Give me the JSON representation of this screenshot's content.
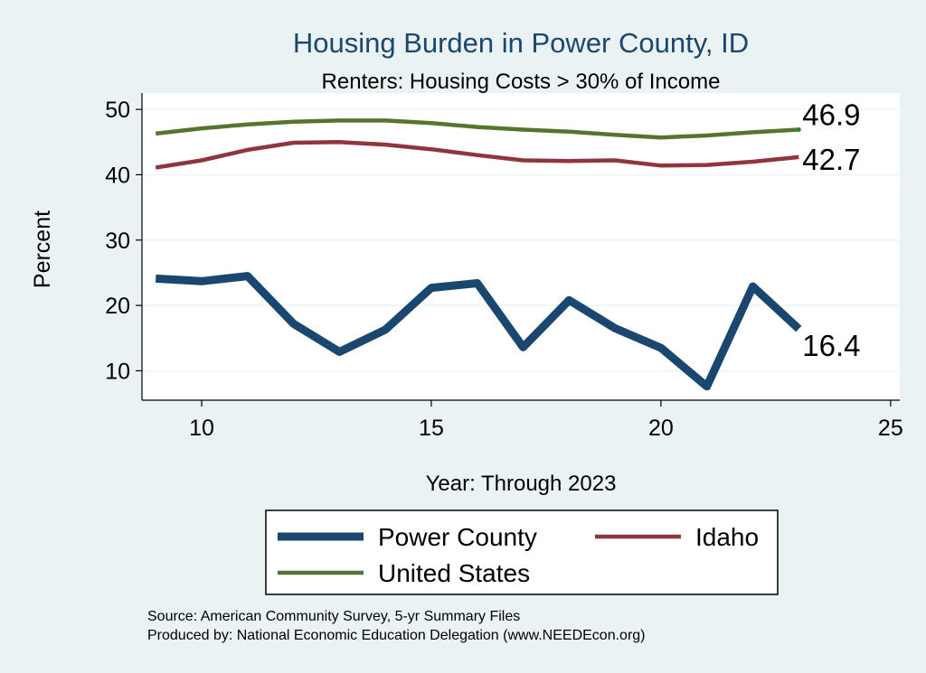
{
  "chart_data": {
    "type": "line",
    "title": "Housing Burden in Power County, ID",
    "subtitle": "Renters: Housing Costs > 30% of Income",
    "xlabel": "Year: Through 2023",
    "ylabel": "Percent",
    "xlim": [
      8.7,
      25.2
    ],
    "ylim": [
      5.5,
      52.5
    ],
    "xticks": [
      10,
      15,
      20,
      25
    ],
    "yticks": [
      10,
      20,
      30,
      40,
      50
    ],
    "grid": true,
    "legend_position": "bottom",
    "series": [
      {
        "name": "Power County",
        "color": "#1a476f",
        "x": [
          9,
          10,
          11,
          12,
          13,
          14,
          15,
          16,
          17,
          18,
          19,
          20,
          21,
          22,
          23
        ],
        "values": [
          24.1,
          23.7,
          24.5,
          17.2,
          12.9,
          16.3,
          22.7,
          23.4,
          13.6,
          20.8,
          16.5,
          13.5,
          7.6,
          22.9,
          16.4
        ],
        "end_label": "16.4"
      },
      {
        "name": "Idaho",
        "color": "#90353b",
        "x": [
          9,
          10,
          11,
          12,
          13,
          14,
          15,
          16,
          17,
          18,
          19,
          20,
          21,
          22,
          23
        ],
        "values": [
          41.1,
          42.2,
          43.8,
          44.9,
          45.0,
          44.6,
          43.9,
          43.0,
          42.2,
          42.1,
          42.2,
          41.4,
          41.5,
          42.0,
          42.7
        ],
        "end_label": "42.7"
      },
      {
        "name": "United States",
        "color": "#55752f",
        "x": [
          9,
          10,
          11,
          12,
          13,
          14,
          15,
          16,
          17,
          18,
          19,
          20,
          21,
          22,
          23
        ],
        "values": [
          46.3,
          47.1,
          47.7,
          48.1,
          48.3,
          48.3,
          47.9,
          47.3,
          46.9,
          46.6,
          46.1,
          45.7,
          46.0,
          46.5,
          46.9
        ],
        "end_label": "46.9"
      }
    ],
    "notes": [
      "Source: American Community Survey, 5-yr Summary Files",
      "Produced by: National Economic Education Delegation (www.NEEDEcon.org)"
    ]
  }
}
